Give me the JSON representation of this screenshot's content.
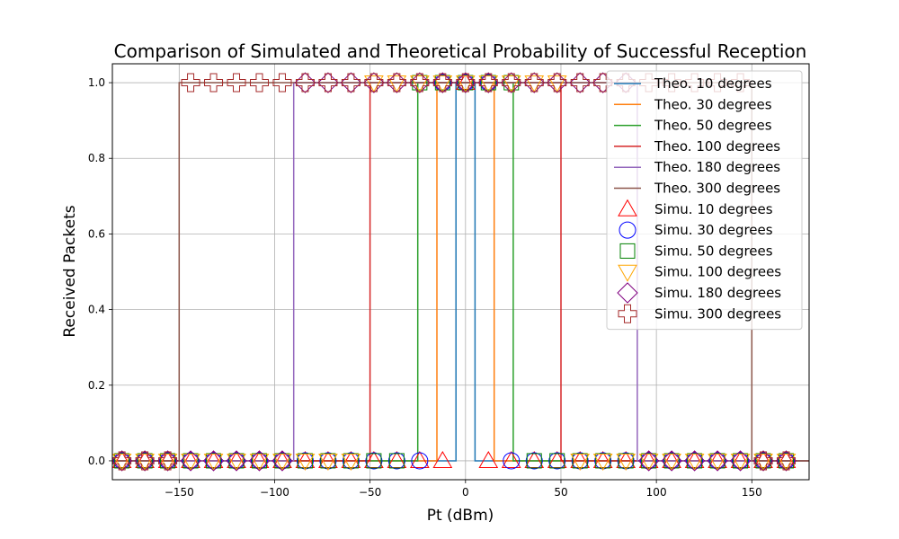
{
  "chart_data": {
    "type": "line",
    "title": "Comparison of Simulated and Theoretical Probability of Successful Reception",
    "xlabel": "Pt (dBm)",
    "ylabel": "Received Packets",
    "xlim": [
      -185,
      180
    ],
    "ylim": [
      -0.05,
      1.05
    ],
    "xticks": [
      -150,
      -100,
      -50,
      0,
      50,
      100,
      150
    ],
    "xtick_labels": [
      "−150",
      "−100",
      "−50",
      "0",
      "50",
      "100",
      "150"
    ],
    "yticks": [
      0.0,
      0.2,
      0.4,
      0.6,
      0.8,
      1.0
    ],
    "ytick_labels": [
      "0.0",
      "0.2",
      "0.4",
      "0.6",
      "0.8",
      "1.0"
    ],
    "grid": true,
    "legend_position": "top-right",
    "theoretical_series": [
      {
        "name": "Theo. 10 degrees",
        "color": "#1f77b4",
        "x": [
          -185,
          -5,
          -5,
          5,
          5,
          180
        ],
        "y": [
          0,
          0,
          1,
          1,
          0,
          0
        ]
      },
      {
        "name": "Theo. 30 degrees",
        "color": "#ff7f0e",
        "x": [
          -185,
          -15,
          -15,
          15,
          15,
          180
        ],
        "y": [
          0,
          0,
          1,
          1,
          0,
          0
        ]
      },
      {
        "name": "Theo. 50 degrees",
        "color": "#2ca02c",
        "x": [
          -185,
          -25,
          -25,
          25,
          25,
          180
        ],
        "y": [
          0,
          0,
          1,
          1,
          0,
          0
        ]
      },
      {
        "name": "Theo. 100 degrees",
        "color": "#d62728",
        "x": [
          -185,
          -50,
          -50,
          50,
          50,
          180
        ],
        "y": [
          0,
          0,
          1,
          1,
          0,
          0
        ]
      },
      {
        "name": "Theo. 180 degrees",
        "color": "#9467bd",
        "x": [
          -185,
          -90,
          -90,
          90,
          90,
          180
        ],
        "y": [
          0,
          0,
          1,
          1,
          0,
          0
        ]
      },
      {
        "name": "Theo. 300 degrees",
        "color": "#8c564b",
        "x": [
          -185,
          -150,
          -150,
          150,
          150,
          180
        ],
        "y": [
          0,
          0,
          1,
          1,
          0,
          0
        ]
      }
    ],
    "simulated_series": [
      {
        "name": "Simu. 10 degrees",
        "marker": "triangle-up",
        "color": "#ff0000",
        "half_width": 5
      },
      {
        "name": "Simu. 30 degrees",
        "marker": "circle",
        "color": "#0000ff",
        "half_width": 15
      },
      {
        "name": "Simu. 50 degrees",
        "marker": "square",
        "color": "#008000",
        "half_width": 25
      },
      {
        "name": "Simu. 100 degrees",
        "marker": "triangle-down",
        "color": "#ffa500",
        "half_width": 50
      },
      {
        "name": "Simu. 180 degrees",
        "marker": "diamond",
        "color": "#800080",
        "half_width": 90
      },
      {
        "name": "Simu. 300 degrees",
        "marker": "plus",
        "color": "#a52a2a",
        "half_width": 150
      }
    ],
    "simulated_x": [
      -180,
      -168,
      -156,
      -144,
      -132,
      -120,
      -108,
      -96,
      -84,
      -72,
      -60,
      -48,
      -36,
      -24,
      -12,
      0,
      12,
      24,
      36,
      48,
      60,
      72,
      84,
      96,
      108,
      120,
      132,
      144,
      156,
      168
    ]
  }
}
